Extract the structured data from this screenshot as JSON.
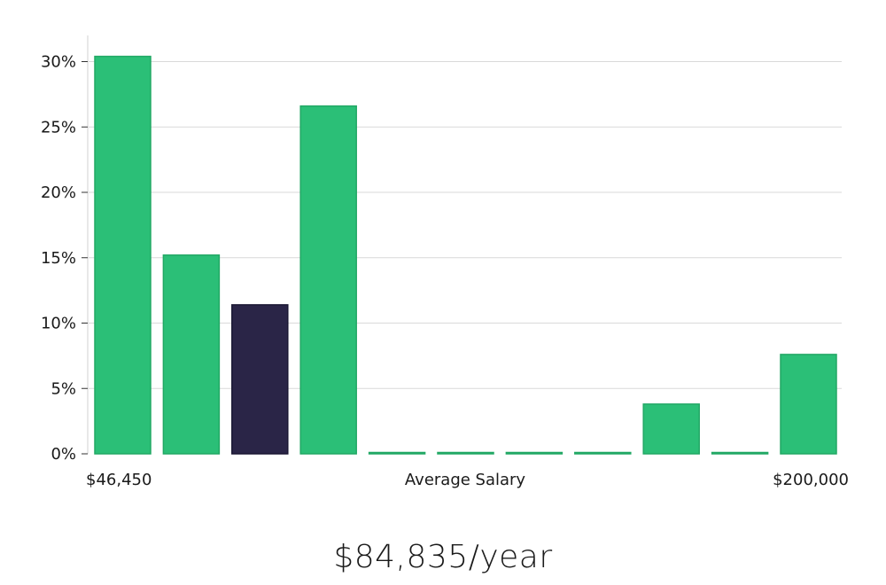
{
  "chart_data": {
    "type": "bar",
    "title": "",
    "xlabel": "Average Salary",
    "ylabel": "",
    "x_min_label": "$46,450",
    "x_max_label": "$200,000",
    "ylim": [
      0,
      32
    ],
    "yticks": [
      0,
      5,
      10,
      15,
      20,
      25,
      30
    ],
    "ytick_labels": [
      "0%",
      "5%",
      "10%",
      "15%",
      "20%",
      "25%",
      "30%"
    ],
    "values": [
      30.4,
      15.2,
      11.4,
      26.6,
      0.1,
      0.1,
      0.1,
      0.1,
      3.8,
      0.1,
      7.6
    ],
    "highlight_index": 2,
    "bar_color": "#2bbf77",
    "bar_edge_color": "#22a865",
    "highlight_color": "#2a2547",
    "highlight_edge_color": "#1a1733"
  },
  "summary": {
    "salary": "$84,835/year"
  }
}
